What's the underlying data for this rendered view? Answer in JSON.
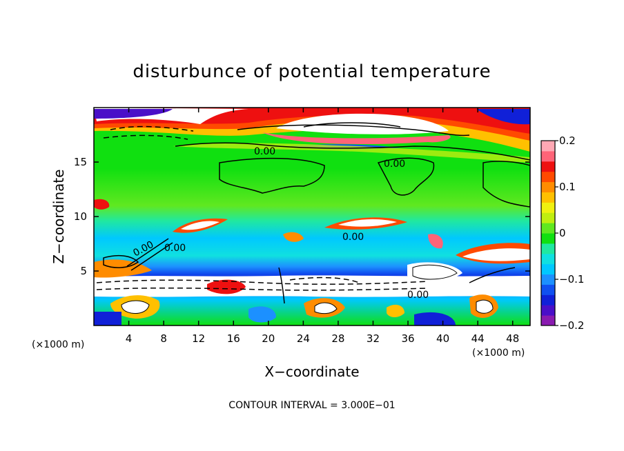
{
  "chart_data": {
    "type": "heatmap",
    "title": "disturbunce of potential temperature",
    "xlabel": "X−coordinate",
    "ylabel": "Z−coordinate",
    "x_unit": "(×1000 m)",
    "xlim": [
      0,
      50
    ],
    "ylim": [
      0,
      20
    ],
    "x_ticks": [
      4,
      8,
      12,
      16,
      20,
      24,
      28,
      32,
      36,
      40,
      44,
      48
    ],
    "y_ticks": [
      5,
      10,
      15
    ],
    "colorbar": {
      "range": [
        -0.2,
        0.2
      ],
      "ticks": [
        0.2,
        0.1,
        0,
        -0.1,
        -0.2
      ],
      "tick_labels": [
        "0.2",
        "0.1",
        "0",
        "−0.1",
        "−0.2"
      ],
      "colors": [
        "#8a1bb0",
        "#4a0fc8",
        "#1020d8",
        "#1050f0",
        "#1c90ff",
        "#00c8ff",
        "#10e0e0",
        "#20e8a0",
        "#10e010",
        "#60e820",
        "#c0ee10",
        "#f0f010",
        "#ffc000",
        "#ff8c00",
        "#ff4a00",
        "#ee1010",
        "#ff6478",
        "#ffa8b4"
      ]
    },
    "contour_interval_text": "CONTOUR INTERVAL = 3.000E−01",
    "contour_labels": [
      "0.00",
      "0.00",
      "0.00",
      "0.00",
      "0.00",
      "0.00"
    ]
  }
}
